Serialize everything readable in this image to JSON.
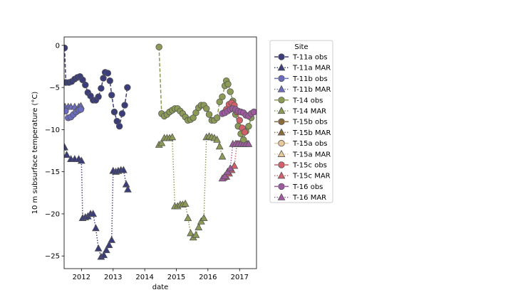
{
  "chart_data": {
    "type": "line",
    "xlabel": "date",
    "ylabel": "10 m subsurface temperature (°C)",
    "xlim": [
      "2011-06-15",
      "2017-07-15"
    ],
    "ylim": [
      -26.5,
      1.0
    ],
    "x_ticks": [
      "2012-01-01",
      "2013-01-01",
      "2014-01-01",
      "2015-01-01",
      "2016-01-01",
      "2017-01-01"
    ],
    "x_tick_labels": [
      "2012",
      "2013",
      "2014",
      "2015",
      "2016",
      "2017"
    ],
    "y_ticks": [
      0,
      -5,
      -10,
      -15,
      -20,
      -25
    ],
    "y_tick_labels": [
      "0",
      "−5",
      "−10",
      "−15",
      "−20",
      "−25"
    ],
    "grid": false,
    "legend": {
      "title": "Site",
      "placement": "outside-right"
    },
    "series": [
      {
        "name": "T-11a obs",
        "color": "#3b3d7a",
        "marker": "circle",
        "linestyle": "dashed",
        "points": [
          [
            "2011-06-20",
            -0.3
          ],
          [
            "2011-07-05",
            -4.4
          ],
          [
            "2011-08-10",
            -4.4
          ],
          [
            "2011-09-10",
            -4.3
          ],
          [
            "2011-10-15",
            -4.0
          ],
          [
            "2011-11-15",
            -3.8
          ],
          [
            "2011-12-15",
            -3.7
          ],
          [
            "2012-01-15",
            -4.1
          ],
          [
            "2012-02-15",
            -4.7
          ],
          [
            "2012-03-15",
            -5.6
          ],
          [
            "2012-04-15",
            -6.0
          ],
          [
            "2012-05-15",
            -6.5
          ],
          [
            "2012-06-15",
            -6.5
          ],
          [
            "2012-07-15",
            -6.1
          ],
          [
            "2012-08-15",
            -5.1
          ],
          [
            "2012-09-10",
            -3.9
          ],
          [
            "2012-10-01",
            -3.2
          ],
          [
            "2012-11-01",
            -3.3
          ],
          [
            "2012-11-25",
            -4.2
          ],
          [
            "2012-12-15",
            -5.9
          ],
          [
            "2013-01-15",
            -7.9
          ],
          [
            "2013-02-15",
            -9.0
          ],
          [
            "2013-03-15",
            -9.6
          ],
          [
            "2013-04-15",
            -8.1
          ],
          [
            "2013-05-15",
            -7.1
          ],
          [
            "2013-06-15",
            -5.0
          ]
        ]
      },
      {
        "name": "T-11a MAR",
        "color": "#3b3d7a",
        "marker": "triangle",
        "linestyle": "dotted",
        "points": [
          [
            "2011-06-20",
            -12.1
          ],
          [
            "2011-07-15",
            -13.0
          ],
          [
            "2011-09-01",
            -13.5
          ],
          [
            "2011-10-15",
            -13.5
          ],
          [
            "2011-12-01",
            -13.5
          ],
          [
            "2012-01-01",
            -13.7
          ],
          [
            "2012-01-15",
            -20.5
          ],
          [
            "2012-02-15",
            -20.4
          ],
          [
            "2012-03-15",
            -20.3
          ],
          [
            "2012-04-15",
            -20.0
          ],
          [
            "2012-05-15",
            -20.0
          ],
          [
            "2012-06-15",
            -21.7
          ],
          [
            "2012-07-15",
            -24.1
          ],
          [
            "2012-08-15",
            -25.1
          ],
          [
            "2012-09-15",
            -24.9
          ],
          [
            "2012-10-15",
            -24.3
          ],
          [
            "2012-11-15",
            -23.7
          ],
          [
            "2012-12-15",
            -23.1
          ],
          [
            "2013-01-01",
            -14.9
          ],
          [
            "2013-02-01",
            -15.0
          ],
          [
            "2013-03-01",
            -14.9
          ],
          [
            "2013-04-01",
            -14.8
          ],
          [
            "2013-05-01",
            -14.8
          ],
          [
            "2013-06-01",
            -16.5
          ],
          [
            "2013-06-20",
            -17.1
          ]
        ]
      },
      {
        "name": "T-11b obs",
        "color": "#6b6cbd",
        "marker": "circle",
        "linestyle": "dashed",
        "points": [
          [
            "2011-07-01",
            -7.8
          ],
          [
            "2011-08-01",
            -8.6
          ],
          [
            "2011-09-01",
            -8.5
          ],
          [
            "2011-10-01",
            -8.2
          ],
          [
            "2011-11-01",
            -7.9
          ],
          [
            "2011-12-01",
            -7.7
          ],
          [
            "2011-12-25",
            -7.6
          ]
        ]
      },
      {
        "name": "T-11b MAR",
        "color": "#6b6cbd",
        "marker": "triangle",
        "linestyle": "dotted",
        "points": [
          [
            "2011-06-25",
            -7.3
          ],
          [
            "2011-08-01",
            -7.3
          ],
          [
            "2011-09-01",
            -7.3
          ],
          [
            "2011-10-15",
            -7.3
          ],
          [
            "2011-12-01",
            -7.3
          ],
          [
            "2011-12-25",
            -7.2
          ]
        ]
      },
      {
        "name": "T-14 obs",
        "color": "#8b9b56",
        "marker": "circle",
        "linestyle": "dashed",
        "points": [
          [
            "2014-06-15",
            -0.2
          ],
          [
            "2014-07-15",
            -8.1
          ],
          [
            "2014-08-15",
            -8.4
          ],
          [
            "2014-09-15",
            -8.2
          ],
          [
            "2014-10-15",
            -7.9
          ],
          [
            "2014-11-15",
            -7.7
          ],
          [
            "2014-12-15",
            -7.5
          ],
          [
            "2015-01-15",
            -7.5
          ],
          [
            "2015-02-15",
            -7.8
          ],
          [
            "2015-03-15",
            -8.1
          ],
          [
            "2015-04-15",
            -8.5
          ],
          [
            "2015-05-15",
            -8.9
          ],
          [
            "2015-06-15",
            -8.8
          ],
          [
            "2015-07-15",
            -8.6
          ],
          [
            "2015-08-15",
            -8.0
          ],
          [
            "2015-09-15",
            -7.4
          ],
          [
            "2015-10-15",
            -7.1
          ],
          [
            "2015-11-15",
            -7.1
          ],
          [
            "2015-12-15",
            -7.5
          ],
          [
            "2016-01-15",
            -8.2
          ],
          [
            "2016-02-15",
            -8.9
          ],
          [
            "2016-03-15",
            -8.9
          ],
          [
            "2016-04-15",
            -8.6
          ],
          [
            "2016-05-15",
            -6.7
          ],
          [
            "2016-06-15",
            -6.1
          ],
          [
            "2016-07-15",
            -4.8
          ],
          [
            "2016-08-01",
            -4.2
          ],
          [
            "2016-08-20",
            -4.6
          ],
          [
            "2016-09-15",
            -5.5
          ],
          [
            "2016-10-15",
            -6.6
          ],
          [
            "2016-11-15",
            -8.2
          ],
          [
            "2016-12-15",
            -9.6
          ],
          [
            "2017-01-15",
            -10.5
          ],
          [
            "2017-02-15",
            -11.2
          ],
          [
            "2017-03-15",
            -10.2
          ],
          [
            "2017-04-15",
            -9.6
          ],
          [
            "2017-05-15",
            -8.6
          ]
        ]
      },
      {
        "name": "T-14 MAR",
        "color": "#8b9b56",
        "marker": "triangle",
        "linestyle": "dotted",
        "points": [
          [
            "2014-06-15",
            -11.8
          ],
          [
            "2014-07-15",
            -11.6
          ],
          [
            "2014-08-15",
            -11.0
          ],
          [
            "2014-09-15",
            -11.0
          ],
          [
            "2014-10-15",
            -11.0
          ],
          [
            "2014-11-15",
            -10.9
          ],
          [
            "2014-12-15",
            -19.1
          ],
          [
            "2015-01-15",
            -19.1
          ],
          [
            "2015-02-15",
            -18.9
          ],
          [
            "2015-03-15",
            -18.9
          ],
          [
            "2015-04-15",
            -18.8
          ],
          [
            "2015-05-15",
            -20.5
          ],
          [
            "2015-06-15",
            -22.3
          ],
          [
            "2015-07-15",
            -22.8
          ],
          [
            "2015-08-15",
            -22.5
          ],
          [
            "2015-09-15",
            -21.6
          ],
          [
            "2015-10-15",
            -20.9
          ],
          [
            "2015-11-15",
            -20.5
          ],
          [
            "2015-12-15",
            -10.9
          ],
          [
            "2016-01-15",
            -10.8
          ],
          [
            "2016-02-15",
            -10.9
          ],
          [
            "2016-03-15",
            -11.0
          ],
          [
            "2016-04-15",
            -11.2
          ],
          [
            "2016-05-15",
            -12.0
          ],
          [
            "2016-06-15",
            -13.2
          ]
        ]
      },
      {
        "name": "T-15b obs",
        "color": "#8b6b3b",
        "marker": "circle",
        "linestyle": "dashed",
        "points": []
      },
      {
        "name": "T-15b MAR",
        "color": "#8b6b3b",
        "marker": "triangle",
        "linestyle": "dotted",
        "points": []
      },
      {
        "name": "T-15a obs",
        "color": "#e6c89a",
        "marker": "circle",
        "linestyle": "dashed",
        "points": []
      },
      {
        "name": "T-15a MAR",
        "color": "#e6c89a",
        "marker": "triangle",
        "linestyle": "dotted",
        "points": []
      },
      {
        "name": "T-15c obs",
        "color": "#d35f6a",
        "marker": "circle",
        "linestyle": "dashed",
        "points": [
          [
            "2016-07-01",
            -8.0
          ],
          [
            "2016-08-01",
            -7.6
          ],
          [
            "2016-09-01",
            -7.0
          ],
          [
            "2016-10-01",
            -6.8
          ],
          [
            "2016-11-01",
            -7.1
          ],
          [
            "2016-12-01",
            -7.9
          ],
          [
            "2017-01-01",
            -8.9
          ],
          [
            "2017-02-01",
            -9.8
          ],
          [
            "2017-03-01",
            -10.3
          ]
        ]
      },
      {
        "name": "T-15c MAR",
        "color": "#d35f6a",
        "marker": "triangle",
        "linestyle": "dotted",
        "points": [
          [
            "2016-07-01",
            -15.7
          ],
          [
            "2016-08-01",
            -15.6
          ],
          [
            "2016-09-01",
            -15.2
          ],
          [
            "2016-10-01",
            -14.8
          ],
          [
            "2016-11-01",
            -14.3
          ],
          [
            "2016-12-01",
            -11.7
          ],
          [
            "2017-01-01",
            -11.7
          ],
          [
            "2017-02-01",
            -11.7
          ],
          [
            "2017-03-01",
            -11.7
          ],
          [
            "2017-04-01",
            -11.7
          ]
        ]
      },
      {
        "name": "T-16 obs",
        "color": "#9e5a9e",
        "marker": "circle",
        "linestyle": "dashed",
        "points": [
          [
            "2016-06-15",
            -8.1
          ],
          [
            "2016-07-15",
            -8.0
          ],
          [
            "2016-08-15",
            -7.8
          ],
          [
            "2016-09-15",
            -7.6
          ],
          [
            "2016-10-15",
            -7.5
          ],
          [
            "2016-11-15",
            -7.6
          ],
          [
            "2016-12-15",
            -7.8
          ],
          [
            "2017-01-15",
            -7.9
          ],
          [
            "2017-02-15",
            -8.0
          ],
          [
            "2017-03-15",
            -8.3
          ],
          [
            "2017-04-15",
            -8.4
          ],
          [
            "2017-05-15",
            -8.1
          ],
          [
            "2017-06-15",
            -7.9
          ]
        ]
      },
      {
        "name": "T-16 MAR",
        "color": "#9e5a9e",
        "marker": "triangle",
        "linestyle": "dotted",
        "points": [
          [
            "2016-06-15",
            -15.8
          ],
          [
            "2016-07-15",
            -15.5
          ],
          [
            "2016-08-15",
            -15.0
          ],
          [
            "2016-09-15",
            -14.6
          ],
          [
            "2016-10-15",
            -11.7
          ],
          [
            "2016-11-15",
            -11.7
          ],
          [
            "2016-12-15",
            -11.7
          ],
          [
            "2017-01-15",
            -11.7
          ],
          [
            "2017-02-15",
            -11.7
          ],
          [
            "2017-03-15",
            -11.7
          ],
          [
            "2017-04-15",
            -11.7
          ]
        ]
      }
    ]
  }
}
